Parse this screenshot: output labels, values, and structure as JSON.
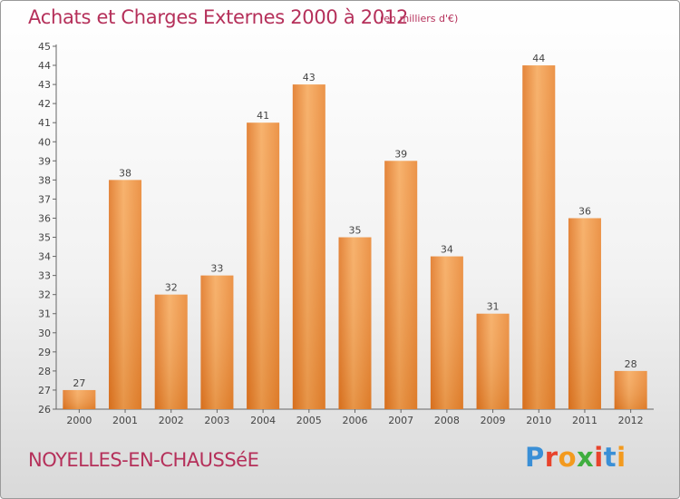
{
  "title": "Achats et Charges Externes 2000 à 2012",
  "unit_label": "(en milliers d'€)",
  "commune": "NOYELLES-EN-CHAUSSéE",
  "brand": {
    "letters": [
      "P",
      "r",
      "o",
      "x",
      "i",
      "t",
      "i"
    ],
    "colors": [
      "#3a8fd6",
      "#e8432c",
      "#f39a1e",
      "#3fae3f",
      "#e8432c",
      "#3a8fd6",
      "#f39a1e"
    ]
  },
  "colors": {
    "bar": "#f08a30",
    "bar_light": "#f6a85a",
    "title": "#b5305a",
    "axis": "#555555"
  },
  "chart_data": {
    "type": "bar",
    "categories": [
      "2000",
      "2001",
      "2002",
      "2003",
      "2004",
      "2005",
      "2006",
      "2007",
      "2008",
      "2009",
      "2010",
      "2011",
      "2012"
    ],
    "values": [
      27,
      38,
      32,
      33,
      41,
      43,
      35,
      39,
      34,
      31,
      44,
      36,
      28
    ],
    "ylim": [
      26,
      45
    ],
    "yticks": [
      26,
      27,
      28,
      29,
      30,
      31,
      32,
      33,
      34,
      35,
      36,
      37,
      38,
      39,
      40,
      41,
      42,
      43,
      44,
      45
    ],
    "grid": false,
    "legend": "none"
  }
}
